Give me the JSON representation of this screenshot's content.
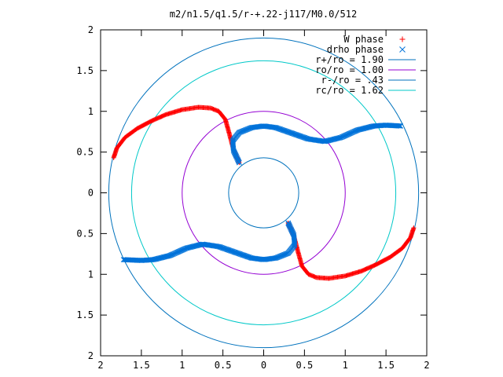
{
  "chart_data": {
    "type": "scatter",
    "title": "m2/n1.5/q1.5/r-+.22-j117/M0.0/512",
    "xlabel": "",
    "ylabel": "",
    "xlim": [
      -2,
      2
    ],
    "ylim": [
      -2,
      2
    ],
    "x_ticks": [
      {
        "value": -2,
        "label": "2"
      },
      {
        "value": -1.5,
        "label": "1.5"
      },
      {
        "value": -1,
        "label": "1"
      },
      {
        "value": -0.5,
        "label": "0.5"
      },
      {
        "value": 0,
        "label": "0"
      },
      {
        "value": 0.5,
        "label": "0.5"
      },
      {
        "value": 1,
        "label": "1"
      },
      {
        "value": 1.5,
        "label": "1.5"
      },
      {
        "value": 2,
        "label": "2"
      }
    ],
    "y_ticks": [
      {
        "value": 2,
        "label": "2"
      },
      {
        "value": 1.5,
        "label": "1.5"
      },
      {
        "value": 1,
        "label": "1"
      },
      {
        "value": 0.5,
        "label": "0.5"
      },
      {
        "value": 0,
        "label": "0"
      },
      {
        "value": -0.5,
        "label": "0.5"
      },
      {
        "value": -1,
        "label": "1"
      },
      {
        "value": -1.5,
        "label": "1.5"
      },
      {
        "value": -2,
        "label": "2"
      }
    ],
    "grid": false,
    "legend_position": "top-right",
    "series": [
      {
        "name": "W phase",
        "marker": "plus",
        "color": "#ff0000",
        "points": [
          [
            -1.84,
            0.43
          ],
          [
            -1.8,
            0.55
          ],
          [
            -1.7,
            0.68
          ],
          [
            -1.55,
            0.79
          ],
          [
            -1.38,
            0.88
          ],
          [
            -1.2,
            0.96
          ],
          [
            -1.0,
            1.02
          ],
          [
            -0.8,
            1.05
          ],
          [
            -0.65,
            1.04
          ],
          [
            -0.55,
            1.0
          ],
          [
            -0.47,
            0.9
          ],
          [
            -0.42,
            0.72
          ],
          [
            -0.37,
            0.53
          ],
          [
            -0.3,
            0.37
          ],
          [
            1.84,
            -0.43
          ],
          [
            1.8,
            -0.55
          ],
          [
            1.7,
            -0.68
          ],
          [
            1.55,
            -0.79
          ],
          [
            1.38,
            -0.88
          ],
          [
            1.2,
            -0.96
          ],
          [
            1.0,
            -1.02
          ],
          [
            0.8,
            -1.05
          ],
          [
            0.65,
            -1.04
          ],
          [
            0.55,
            -1.0
          ],
          [
            0.47,
            -0.9
          ],
          [
            0.42,
            -0.72
          ],
          [
            0.37,
            -0.53
          ],
          [
            0.3,
            -0.37
          ]
        ]
      },
      {
        "name": "drho phase",
        "marker": "cross",
        "color": "#0072d9",
        "points": [
          [
            -0.3,
            0.37
          ],
          [
            -0.37,
            0.52
          ],
          [
            -0.38,
            0.64
          ],
          [
            -0.3,
            0.74
          ],
          [
            -0.15,
            0.8
          ],
          [
            0.0,
            0.82
          ],
          [
            0.15,
            0.8
          ],
          [
            0.35,
            0.73
          ],
          [
            0.55,
            0.66
          ],
          [
            0.75,
            0.63
          ],
          [
            0.95,
            0.68
          ],
          [
            1.15,
            0.77
          ],
          [
            1.35,
            0.82
          ],
          [
            1.5,
            0.83
          ],
          [
            1.68,
            0.82
          ],
          [
            0.3,
            -0.37
          ],
          [
            0.37,
            -0.52
          ],
          [
            0.38,
            -0.64
          ],
          [
            0.3,
            -0.74
          ],
          [
            0.15,
            -0.8
          ],
          [
            0.0,
            -0.82
          ],
          [
            -0.15,
            -0.8
          ],
          [
            -0.35,
            -0.73
          ],
          [
            -0.55,
            -0.66
          ],
          [
            -0.75,
            -0.63
          ],
          [
            -0.95,
            -0.68
          ],
          [
            -1.15,
            -0.77
          ],
          [
            -1.35,
            -0.82
          ],
          [
            -1.5,
            -0.83
          ],
          [
            -1.72,
            -0.82
          ]
        ]
      },
      {
        "name": "r+/ro = 1.90",
        "type": "circle",
        "radius": 1.9,
        "color": "#0072bd"
      },
      {
        "name": "ro/ro = 1.00",
        "type": "circle",
        "radius": 1.0,
        "color": "#9400d3"
      },
      {
        "name": "r-/ro = .43",
        "type": "circle",
        "radius": 0.43,
        "color": "#0072bd"
      },
      {
        "name": "rc/ro = 1.62",
        "type": "circle",
        "radius": 1.62,
        "color": "#00c8c8"
      }
    ]
  }
}
